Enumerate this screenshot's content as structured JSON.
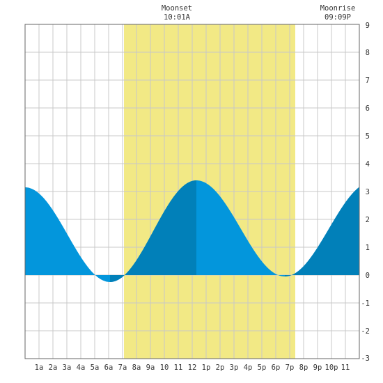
{
  "chart_data": {
    "type": "area",
    "title": "",
    "xlabel": "",
    "ylabel": "",
    "xlim": [
      0,
      24
    ],
    "ylim": [
      -3,
      9
    ],
    "grid": true,
    "x_tick_labels": [
      {
        "x": 1,
        "label": "1a"
      },
      {
        "x": 2,
        "label": "2a"
      },
      {
        "x": 3,
        "label": "3a"
      },
      {
        "x": 4,
        "label": "4a"
      },
      {
        "x": 5,
        "label": "5a"
      },
      {
        "x": 6,
        "label": "6a"
      },
      {
        "x": 7,
        "label": "7a"
      },
      {
        "x": 8,
        "label": "8a"
      },
      {
        "x": 9,
        "label": "9a"
      },
      {
        "x": 10,
        "label": "10"
      },
      {
        "x": 11,
        "label": "11"
      },
      {
        "x": 12,
        "label": "12"
      },
      {
        "x": 13,
        "label": "1p"
      },
      {
        "x": 14,
        "label": "2p"
      },
      {
        "x": 15,
        "label": "3p"
      },
      {
        "x": 16,
        "label": "4p"
      },
      {
        "x": 17,
        "label": "5p"
      },
      {
        "x": 18,
        "label": "6p"
      },
      {
        "x": 19,
        "label": "7p"
      },
      {
        "x": 20,
        "label": "8p"
      },
      {
        "x": 21,
        "label": "9p"
      },
      {
        "x": 22,
        "label": "10p"
      },
      {
        "x": 23,
        "label": "11"
      }
    ],
    "y_ticks": [
      9,
      8,
      7,
      6,
      5,
      4,
      3,
      2,
      1,
      0,
      -1,
      -2,
      -3
    ],
    "highlight": {
      "start": 7.1,
      "end": 19.4,
      "color": "#f2e985"
    },
    "tide_series": {
      "name": "",
      "extremes": [
        {
          "x": 0,
          "y": 3.15
        },
        {
          "x": 6.1,
          "y": -0.25
        },
        {
          "x": 12.3,
          "y": 3.4
        },
        {
          "x": 18.65,
          "y": -0.05
        },
        {
          "x": 24.95,
          "y": 3.35
        }
      ],
      "dark_intervals": [
        [
          6.1,
          12.3
        ],
        [
          18.65,
          24
        ]
      ]
    },
    "colors": {
      "light_fill": "#0396dc",
      "dark_fill": "#0180b9",
      "grid": "#c8c8c8",
      "frame": "#666666",
      "background": "#ffffff"
    },
    "annotations": {
      "moonset": {
        "label": "Moonset",
        "time": "10:01A",
        "x": 10.9
      },
      "moonrise": {
        "label": "Moonrise",
        "time": "09:09P",
        "x": 22.45
      }
    }
  }
}
